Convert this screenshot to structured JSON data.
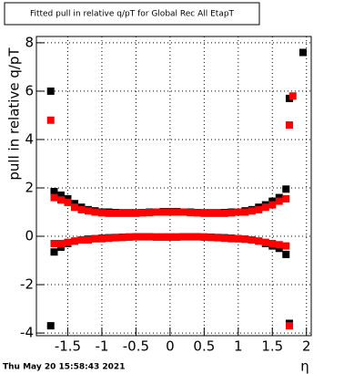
{
  "chart_data": {
    "type": "scatter",
    "title": "Fitted pull in relative q/pT for Global Rec All EtapT",
    "x_label": "η",
    "y_label": "pull in relative q/pT",
    "footer": "Thu May 20 15:58:43 2021",
    "x": [
      -1.75,
      -1.7,
      -1.6,
      -1.5,
      -1.4,
      -1.3,
      -1.2,
      -1.1,
      -1.0,
      -0.9,
      -0.8,
      -0.7,
      -0.6,
      -0.5,
      -0.4,
      -0.3,
      -0.2,
      -0.1,
      0,
      0.1,
      0.2,
      0.3,
      0.4,
      0.5,
      0.6,
      0.7,
      0.8,
      0.9,
      1.0,
      1.1,
      1.2,
      1.3,
      1.4,
      1.5,
      1.6,
      1.7,
      1.75,
      1.8,
      1.95
    ],
    "series": [
      {
        "color": "#000000",
        "values": [
          6.0,
          1.85,
          1.7,
          1.55,
          1.35,
          1.2,
          1.1,
          1.05,
          1.0,
          1.0,
          0.98,
          0.97,
          0.97,
          0.97,
          0.98,
          1.0,
          1.0,
          1.02,
          1.02,
          1.02,
          1.0,
          1.0,
          0.98,
          0.97,
          0.97,
          0.97,
          0.98,
          1.0,
          1.0,
          1.05,
          1.1,
          1.2,
          1.3,
          1.45,
          1.6,
          1.95,
          5.7,
          null,
          7.6
        ]
      },
      {
        "color": "#000000",
        "values": [
          -3.7,
          -0.65,
          -0.45,
          -0.3,
          -0.2,
          -0.15,
          -0.12,
          -0.1,
          -0.08,
          -0.06,
          -0.05,
          -0.04,
          -0.03,
          -0.02,
          -0.02,
          -0.02,
          -0.03,
          -0.03,
          -0.03,
          -0.03,
          -0.02,
          -0.02,
          -0.02,
          -0.03,
          -0.04,
          -0.05,
          -0.06,
          -0.08,
          -0.1,
          -0.12,
          -0.15,
          -0.2,
          -0.3,
          -0.4,
          -0.5,
          -0.75,
          -3.6,
          null,
          null
        ]
      },
      {
        "color": "#ff0000",
        "values": [
          4.8,
          1.6,
          1.5,
          1.4,
          1.2,
          1.1,
          1.05,
          1.0,
          0.97,
          0.95,
          0.95,
          0.95,
          0.95,
          0.95,
          0.97,
          0.98,
          1.0,
          1.0,
          1.0,
          1.0,
          1.0,
          0.98,
          0.97,
          0.95,
          0.95,
          0.95,
          0.95,
          0.97,
          1.0,
          1.0,
          1.05,
          1.1,
          1.2,
          1.3,
          1.45,
          1.55,
          4.6,
          5.8,
          null
        ]
      },
      {
        "color": "#ff0000",
        "values": [
          null,
          -0.3,
          -0.3,
          -0.25,
          -0.2,
          -0.15,
          -0.15,
          -0.1,
          -0.1,
          -0.08,
          -0.06,
          -0.05,
          -0.03,
          -0.02,
          -0.02,
          -0.02,
          -0.03,
          -0.03,
          -0.03,
          -0.03,
          -0.02,
          -0.02,
          -0.02,
          -0.03,
          -0.05,
          -0.06,
          -0.08,
          -0.1,
          -0.1,
          -0.12,
          -0.15,
          -0.2,
          -0.25,
          -0.3,
          -0.35,
          -0.4,
          -3.7,
          null,
          null
        ]
      }
    ],
    "xlim": [
      -1.96,
      2.07
    ],
    "ylim": [
      -4.11,
      8.26
    ],
    "xticks": [
      -1.5,
      -1,
      -0.5,
      0,
      0.5,
      1,
      1.5,
      2
    ],
    "yticks": [
      -4,
      -2,
      0,
      2,
      4,
      6,
      8
    ],
    "grid": true
  }
}
